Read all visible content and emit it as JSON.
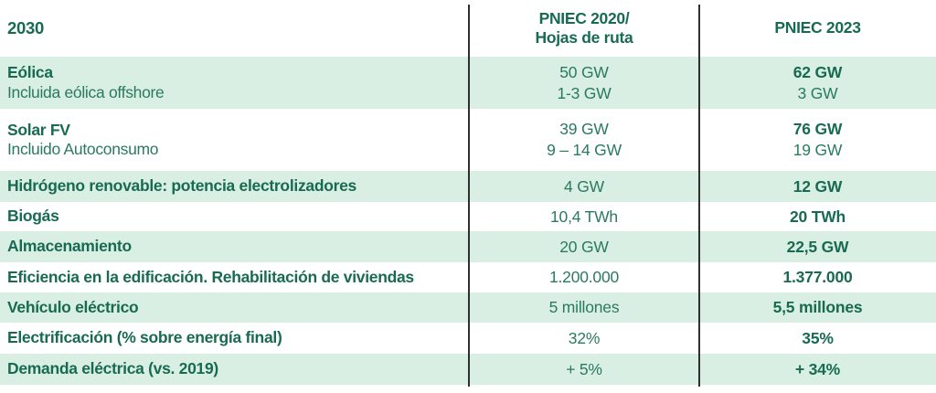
{
  "header": {
    "col1": "2030",
    "col2_line1": "PNIEC 2020/",
    "col2_line2": "Hojas de ruta",
    "col3": "PNIEC 2023"
  },
  "rows": [
    {
      "label": "Eólica",
      "sublabel": "Incluida eólica offshore",
      "v2020": "50 GW",
      "v2020_sub": "1-3 GW",
      "v2023": "62 GW",
      "v2023_sub": "3 GW"
    },
    {
      "label": "Solar FV",
      "sublabel": "Incluido Autoconsumo",
      "v2020": "39 GW",
      "v2020_sub": "9 – 14 GW",
      "v2023": "76 GW",
      "v2023_sub": "19 GW"
    },
    {
      "label": "Hidrógeno renovable: potencia electrolizadores",
      "v2020": "4 GW",
      "v2023": "12 GW"
    },
    {
      "label": "Biogás",
      "v2020": "10,4 TWh",
      "v2023": "20 TWh"
    },
    {
      "label": "Almacenamiento",
      "v2020": "20 GW",
      "v2023": "22,5 GW"
    },
    {
      "label": "Eficiencia en la edificación. Rehabilitación de viviendas",
      "v2020": "1.200.000",
      "v2023": "1.377.000"
    },
    {
      "label": "Vehículo eléctrico",
      "v2020": "5 millones",
      "v2023": "5,5 millones"
    },
    {
      "label": "Electrificación (% sobre energía final)",
      "v2020": "32%",
      "v2023": "35%"
    },
    {
      "label": "Demanda eléctrica (vs. 2019)",
      "v2020": "+ 5%",
      "v2023": "+ 34%"
    }
  ],
  "colors": {
    "row_green": "#d9efe4",
    "text_dark_green": "#186b52",
    "text_mid_green": "#2a7a61",
    "divider": "#2f2f2f",
    "background": "#ffffff"
  },
  "chart_data": {
    "type": "table",
    "title": "2030 — PNIEC 2020/Hojas de ruta vs PNIEC 2023",
    "columns": [
      "2030",
      "PNIEC 2020/ Hojas de ruta",
      "PNIEC 2023"
    ],
    "rows": [
      [
        "Eólica (Incluida eólica offshore)",
        "50 GW / 1-3 GW",
        "62 GW / 3 GW"
      ],
      [
        "Solar FV (Incluido Autoconsumo)",
        "39 GW / 9 – 14 GW",
        "76 GW / 19 GW"
      ],
      [
        "Hidrógeno renovable: potencia electrolizadores",
        "4 GW",
        "12 GW"
      ],
      [
        "Biogás",
        "10,4 TWh",
        "20 TWh"
      ],
      [
        "Almacenamiento",
        "20 GW",
        "22,5 GW"
      ],
      [
        "Eficiencia en la edificación. Rehabilitación de viviendas",
        "1.200.000",
        "1.377.000"
      ],
      [
        "Vehículo eléctrico",
        "5 millones",
        "5,5 millones"
      ],
      [
        "Electrificación (% sobre energía final)",
        "32%",
        "35%"
      ],
      [
        "Demanda eléctrica (vs. 2019)",
        "+ 5%",
        "+ 34%"
      ]
    ],
    "layout": {
      "row_shading": "alternating light green / white",
      "column_dividers": true
    }
  }
}
